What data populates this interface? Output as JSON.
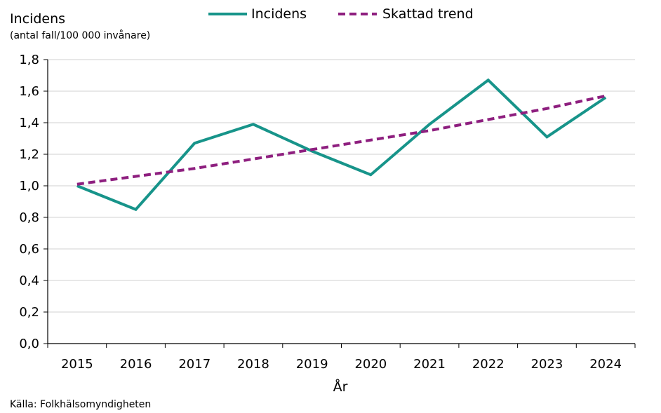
{
  "chart_data": {
    "type": "line",
    "ylabel": "Incidens",
    "ylabel_unit": "(antal fall/100 000 invånare)",
    "xlabel": "År",
    "categories": [
      "2015",
      "2016",
      "2017",
      "2018",
      "2019",
      "2020",
      "2021",
      "2022",
      "2023",
      "2024"
    ],
    "ylim": [
      0,
      1.8
    ],
    "yticks": [
      "0,0",
      "0,2",
      "0,4",
      "0,6",
      "0,8",
      "1,0",
      "1,2",
      "1,4",
      "1,6",
      "1,8"
    ],
    "ytick_values": [
      0,
      0.2,
      0.4,
      0.6,
      0.8,
      1.0,
      1.2,
      1.4,
      1.6,
      1.8
    ],
    "grid": true,
    "legend_position": "top-center",
    "series": [
      {
        "name": "Incidens",
        "style": "solid",
        "color": "#17948a",
        "values": [
          1.0,
          0.85,
          1.27,
          1.39,
          1.22,
          1.07,
          1.39,
          1.67,
          1.31,
          1.56
        ]
      },
      {
        "name": "Skattad trend",
        "style": "dashed",
        "color": "#8e1f7f",
        "values": [
          1.01,
          1.06,
          1.11,
          1.17,
          1.23,
          1.29,
          1.35,
          1.42,
          1.49,
          1.57
        ]
      }
    ],
    "source": "Källa: Folkhälsomyndigheten"
  }
}
